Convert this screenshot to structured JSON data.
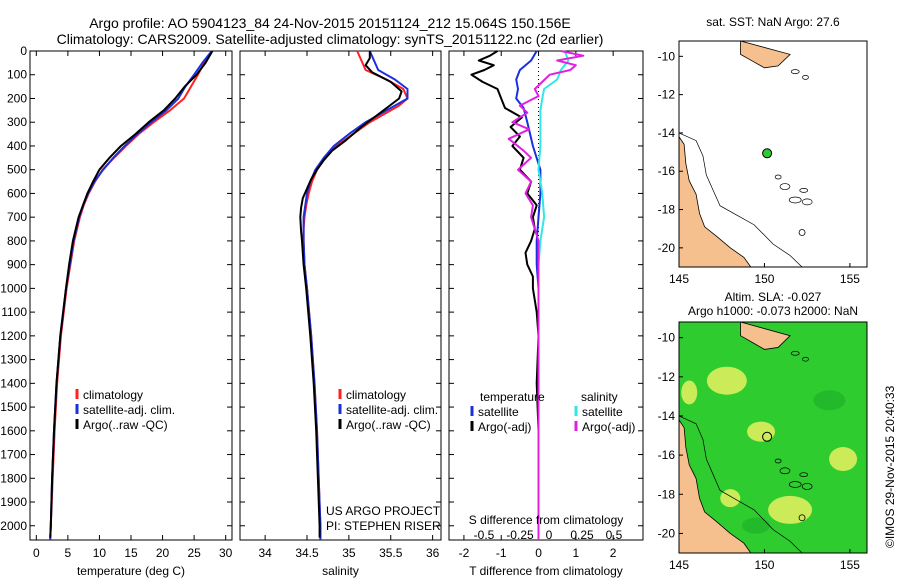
{
  "header": {
    "line1": "Argo profile: AO 5904123_84 24-Nov-2015 20151124_212 15.064S 150.156E",
    "line2": "Climatology: CARS2009. Satellite-adjusted climatology: synTS_20151122.nc (2d earlier)"
  },
  "colors": {
    "clim": "#ff2020",
    "sat": "#1a2fe0",
    "argo": "#000000",
    "sal_sat": "#33e6e6",
    "sal_argo": "#e020e0",
    "land": "#f6c08e",
    "sla_green": "#2ecc2e",
    "sla_yellow": "#e8f060"
  },
  "depth_axis": {
    "ticks": [
      0,
      100,
      200,
      300,
      400,
      500,
      600,
      700,
      800,
      900,
      1000,
      1100,
      1200,
      1300,
      1400,
      1500,
      1600,
      1700,
      1800,
      1900,
      2000
    ],
    "range": [
      0,
      2060
    ]
  },
  "chart_data": [
    {
      "type": "line",
      "id": "temperature",
      "xlabel": "temperature (deg C)",
      "xlim": [
        -1,
        31
      ],
      "xticks": [
        0,
        5,
        10,
        15,
        20,
        25,
        30
      ],
      "legend": {
        "clim": "climatology",
        "sat": "satellite-adj. clim.",
        "argo": "Argo(..raw -QC)"
      },
      "series": [
        {
          "name": "climatology",
          "color_key": "clim",
          "depth": [
            0,
            50,
            100,
            150,
            200,
            250,
            300,
            350,
            400,
            450,
            500,
            550,
            600,
            650,
            700,
            800,
            900,
            1000,
            1200,
            1400,
            1600,
            1800,
            2000,
            2060
          ],
          "values": [
            27.8,
            26.6,
            25.6,
            24.5,
            23.4,
            21.2,
            18.6,
            16.2,
            14.2,
            12.3,
            10.5,
            9.3,
            8.3,
            7.5,
            6.9,
            6.0,
            5.4,
            4.8,
            3.9,
            3.3,
            2.9,
            2.6,
            2.3,
            2.2
          ]
        },
        {
          "name": "satellite-adj. clim.",
          "color_key": "sat",
          "depth": [
            0,
            50,
            100,
            150,
            200,
            250,
            300,
            350,
            400,
            450,
            500,
            550,
            600,
            650,
            700,
            800,
            900,
            1000,
            1200,
            1400,
            1600,
            1800,
            2000,
            2060
          ],
          "values": [
            27.8,
            26.3,
            25.0,
            23.6,
            22.5,
            20.6,
            18.2,
            16.0,
            14.0,
            12.2,
            10.6,
            9.2,
            8.2,
            7.4,
            6.8,
            5.9,
            5.3,
            4.7,
            3.8,
            3.2,
            2.8,
            2.5,
            2.3,
            2.2
          ]
        },
        {
          "name": "Argo",
          "color_key": "argo",
          "depth": [
            0,
            50,
            100,
            150,
            200,
            250,
            300,
            350,
            400,
            450,
            500,
            550,
            600,
            650,
            700,
            800,
            900,
            1000,
            1200,
            1400,
            1600,
            1800,
            2000,
            2050
          ],
          "values": [
            27.9,
            26.8,
            25.4,
            23.5,
            22.0,
            20.2,
            17.8,
            15.7,
            13.4,
            11.6,
            10.0,
            9.0,
            8.1,
            7.4,
            6.7,
            5.8,
            5.2,
            4.7,
            3.8,
            3.2,
            2.8,
            2.5,
            2.3,
            2.2
          ]
        }
      ]
    },
    {
      "type": "line",
      "id": "salinity",
      "xlabel": "salinity",
      "xlim": [
        33.7,
        36.1
      ],
      "xticks": [
        34,
        34.5,
        35,
        35.5,
        36
      ],
      "legend": {
        "clim": "climatology",
        "sat": "satellite-adj. clim.",
        "argo": "Argo(..raw -QC)"
      },
      "annotation": [
        "US ARGO PROJECT",
        "PI: STEPHEN RISER"
      ],
      "series": [
        {
          "name": "climatology",
          "color_key": "clim",
          "depth": [
            0,
            40,
            80,
            120,
            160,
            200,
            230,
            260,
            300,
            350,
            400,
            450,
            500,
            550,
            600,
            650,
            700,
            750,
            800,
            900,
            1000,
            1200,
            1400,
            1600,
            1800,
            2000,
            2060
          ],
          "values": [
            35.1,
            35.15,
            35.2,
            35.45,
            35.65,
            35.7,
            35.6,
            35.45,
            35.25,
            35.05,
            34.85,
            34.72,
            34.62,
            34.56,
            34.52,
            34.49,
            34.47,
            34.46,
            34.46,
            34.47,
            34.5,
            34.55,
            34.59,
            34.62,
            34.64,
            34.66,
            34.66
          ]
        },
        {
          "name": "satellite-adj. clim.",
          "color_key": "sat",
          "depth": [
            0,
            40,
            80,
            120,
            160,
            200,
            230,
            260,
            300,
            350,
            400,
            450,
            500,
            550,
            600,
            650,
            700,
            750,
            800,
            900,
            1000,
            1200,
            1400,
            1600,
            1800,
            2000,
            2060
          ],
          "values": [
            35.25,
            35.3,
            35.35,
            35.55,
            35.7,
            35.7,
            35.55,
            35.4,
            35.2,
            35.0,
            34.82,
            34.7,
            34.6,
            34.54,
            34.5,
            34.48,
            34.46,
            34.46,
            34.46,
            34.47,
            34.5,
            34.55,
            34.59,
            34.62,
            34.64,
            34.66,
            34.66
          ]
        },
        {
          "name": "Argo",
          "color_key": "argo",
          "depth": [
            0,
            30,
            60,
            90,
            130,
            170,
            200,
            240,
            280,
            320,
            380,
            420,
            460,
            500,
            540,
            580,
            620,
            660,
            700,
            760,
            800,
            900,
            1000,
            1200,
            1400,
            1600,
            1800,
            2000,
            2050
          ],
          "values": [
            35.25,
            35.25,
            35.2,
            35.28,
            35.5,
            35.63,
            35.6,
            35.45,
            35.3,
            35.15,
            34.95,
            34.8,
            34.7,
            34.62,
            34.55,
            34.5,
            34.45,
            34.43,
            34.42,
            34.43,
            34.44,
            34.46,
            34.49,
            34.54,
            34.58,
            34.61,
            34.63,
            34.65,
            34.65
          ]
        }
      ]
    },
    {
      "type": "line",
      "id": "differences",
      "xlabel": "T difference from climatology",
      "xlabel2": "S difference from climatology",
      "xlim": [
        -2.4,
        2.8
      ],
      "xticks": [
        -2,
        -1,
        0,
        1,
        2
      ],
      "s_ticks": [
        "-0.5",
        "-0.25",
        "0",
        "0.25",
        "0.5"
      ],
      "legend": {
        "temp_title": "temperature",
        "sal_title": "salinity",
        "sat": "satellite",
        "argo": "Argo(-adj)"
      },
      "series": [
        {
          "name": "temperature satellite",
          "color_key": "sat",
          "depth": [
            0,
            40,
            80,
            120,
            160,
            200,
            240,
            300,
            400,
            500,
            600,
            700,
            800,
            900,
            1000,
            1200,
            1400,
            1600,
            1800,
            2000,
            2060
          ],
          "values": [
            -0.05,
            -0.2,
            -0.5,
            -0.6,
            -0.55,
            -0.6,
            -0.4,
            -0.3,
            -0.15,
            0.05,
            0.05,
            0.0,
            -0.05,
            -0.05,
            0.0,
            0.0,
            0.0,
            0.0,
            0.0,
            0.0,
            0.0
          ]
        },
        {
          "name": "temperature Argo",
          "color_key": "argo",
          "depth": [
            0,
            20,
            40,
            60,
            80,
            100,
            130,
            160,
            200,
            240,
            280,
            320,
            360,
            400,
            450,
            500,
            550,
            600,
            650,
            700,
            750,
            800,
            850,
            900,
            950,
            1000,
            1050,
            1100,
            1200,
            1400,
            1600,
            1800,
            2000,
            2060
          ],
          "values": [
            -1.1,
            -1.3,
            -1.6,
            -1.2,
            -1.45,
            -1.8,
            -1.5,
            -1.1,
            -1.0,
            -0.9,
            -0.45,
            -0.75,
            -0.5,
            -0.7,
            -0.4,
            -0.5,
            -0.2,
            -0.3,
            -0.05,
            -0.15,
            -0.1,
            -0.2,
            -0.35,
            -0.3,
            -0.15,
            -0.15,
            -0.1,
            -0.05,
            0.0,
            -0.05,
            0.0,
            0.0,
            0.0,
            0.0
          ]
        },
        {
          "name": "salinity satellite",
          "color_key": "sal_sat",
          "depth": [
            0,
            40,
            80,
            120,
            160,
            200,
            250,
            300,
            350,
            400,
            500,
            600,
            700,
            800,
            900,
            1000,
            1200,
            1400,
            1600,
            1800,
            2000,
            2060
          ],
          "values": [
            0.7,
            0.8,
            0.6,
            0.5,
            0.15,
            0.1,
            0.05,
            0.05,
            0.05,
            0.05,
            0.0,
            0.1,
            0.15,
            0.05,
            0.0,
            0.0,
            0.0,
            0.0,
            0.0,
            0.0,
            0.0,
            0.0
          ]
        },
        {
          "name": "salinity Argo",
          "color_key": "sal_argo",
          "depth": [
            0,
            20,
            40,
            60,
            80,
            100,
            130,
            160,
            190,
            230,
            260,
            300,
            330,
            370,
            420,
            450,
            500,
            550,
            600,
            650,
            700,
            750,
            800,
            900,
            1000,
            1200,
            1400,
            1600,
            1800,
            2000,
            2060
          ],
          "values": [
            0.6,
            1.2,
            0.5,
            1.0,
            0.85,
            0.3,
            0.1,
            -0.1,
            0.0,
            -0.5,
            -0.3,
            -0.7,
            -0.25,
            -0.8,
            -0.4,
            -0.2,
            -0.55,
            -0.2,
            -0.35,
            -0.15,
            -0.2,
            -0.1,
            0.0,
            0.0,
            0.0,
            0.0,
            0.0,
            0.0,
            0.0,
            0.0,
            0.0
          ]
        }
      ]
    },
    {
      "type": "map",
      "id": "sst_map",
      "title": "sat. SST: NaN Argo: 27.6",
      "xticks": [
        "145",
        "150",
        "155"
      ],
      "yticks": [
        "-10",
        "-12",
        "-14",
        "-16",
        "-18",
        "-20"
      ],
      "lon_range": [
        145,
        156
      ],
      "lat_range": [
        -21,
        -9.2
      ],
      "argo_position": {
        "lon": 150.156,
        "lat": -15.064
      }
    },
    {
      "type": "heatmap",
      "id": "sla_map",
      "title1": "Altim. SLA: -0.027",
      "title2": "Argo h1000: -0.073 h2000: NaN",
      "xticks": [
        "145",
        "150",
        "155"
      ],
      "yticks": [
        "-10",
        "-12",
        "-14",
        "-16",
        "-18",
        "-20"
      ],
      "lon_range": [
        145,
        156
      ],
      "lat_range": [
        -21,
        -9.2
      ],
      "argo_position": {
        "lon": 150.156,
        "lat": -15.064
      }
    }
  ],
  "credit": "©IMOS 29-Nov-2015 20:40:33"
}
